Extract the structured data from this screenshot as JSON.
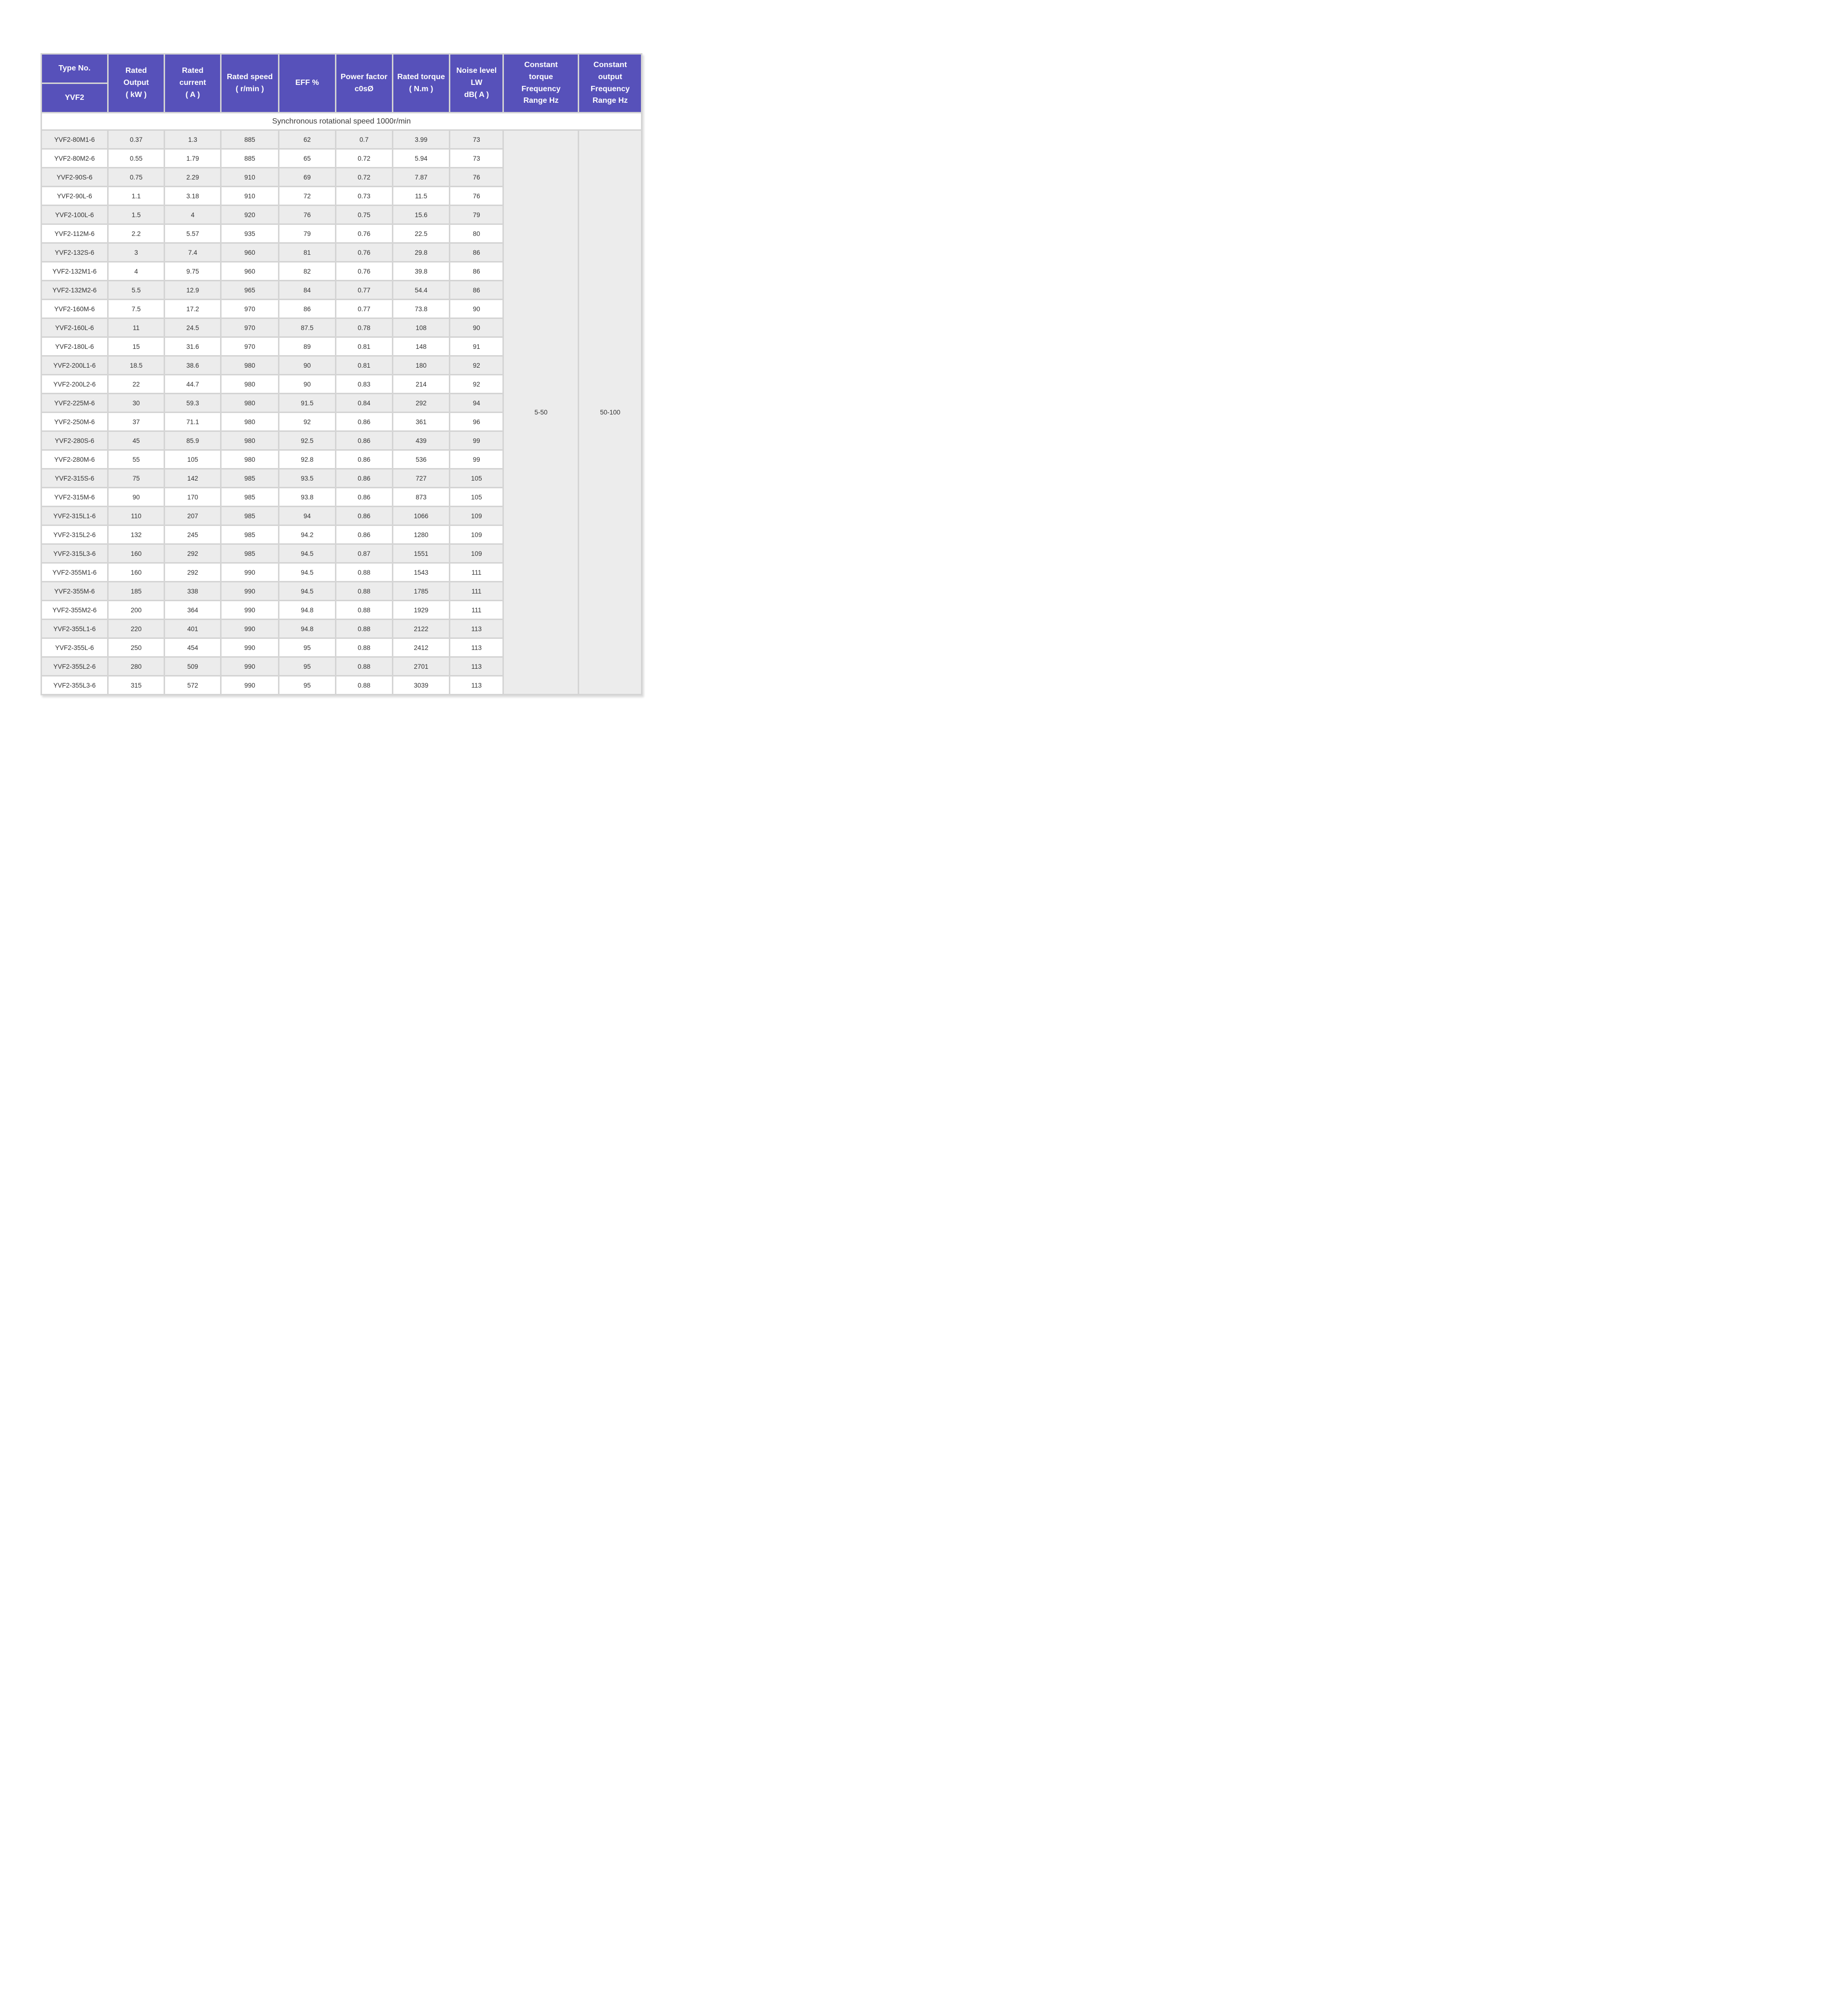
{
  "table": {
    "section_header": "Synchronous rotational speed 1000r/min",
    "columns": [
      {
        "key": "type_no",
        "label": [
          "Type No."
        ],
        "sub_label": "YVF2"
      },
      {
        "key": "rated_output_kw",
        "label": [
          "Rated",
          "Output",
          "( kW )"
        ]
      },
      {
        "key": "rated_current_a",
        "label": [
          "Rated",
          "current",
          "( A )"
        ]
      },
      {
        "key": "rated_speed_rpm",
        "label": [
          "Rated speed",
          "( r/min )"
        ]
      },
      {
        "key": "eff_percent",
        "label": [
          "EFF %"
        ]
      },
      {
        "key": "power_factor",
        "label": [
          "Power factor",
          "c0sØ"
        ]
      },
      {
        "key": "rated_torque_nm",
        "label": [
          "Rated torque",
          "( N.m )"
        ]
      },
      {
        "key": "noise_level_db",
        "label": [
          "Noise level",
          "LW",
          "dB( A )"
        ]
      },
      {
        "key": "constant_torque",
        "label": [
          "Constant",
          "torque",
          "Frequency",
          "Range Hz"
        ]
      },
      {
        "key": "constant_output",
        "label": [
          "Constant",
          "output",
          "Frequency",
          "Range Hz"
        ]
      }
    ],
    "row_cell_keys": [
      "type-no",
      "rated-output-kw",
      "rated-current-a",
      "rated-speed-rpm",
      "eff-percent",
      "power-factor",
      "rated-torque-nm",
      "noise-level-db"
    ],
    "constant_torque_range": "5-50",
    "constant_output_range": "50-100",
    "rows": [
      [
        "YVF2-80M1-6",
        "0.37",
        "1.3",
        "885",
        "62",
        "0.7",
        "3.99",
        "73"
      ],
      [
        "YVF2-80M2-6",
        "0.55",
        "1.79",
        "885",
        "65",
        "0.72",
        "5.94",
        "73"
      ],
      [
        "YVF2-90S-6",
        "0.75",
        "2.29",
        "910",
        "69",
        "0.72",
        "7.87",
        "76"
      ],
      [
        "YVF2-90L-6",
        "1.1",
        "3.18",
        "910",
        "72",
        "0.73",
        "11.5",
        "76"
      ],
      [
        "YVF2-100L-6",
        "1.5",
        "4",
        "920",
        "76",
        "0.75",
        "15.6",
        "79"
      ],
      [
        "YVF2-112M-6",
        "2.2",
        "5.57",
        "935",
        "79",
        "0.76",
        "22.5",
        "80"
      ],
      [
        "YVF2-132S-6",
        "3",
        "7.4",
        "960",
        "81",
        "0.76",
        "29.8",
        "86"
      ],
      [
        "YVF2-132M1-6",
        "4",
        "9.75",
        "960",
        "82",
        "0.76",
        "39.8",
        "86"
      ],
      [
        "YVF2-132M2-6",
        "5.5",
        "12.9",
        "965",
        "84",
        "0.77",
        "54.4",
        "86"
      ],
      [
        "YVF2-160M-6",
        "7.5",
        "17.2",
        "970",
        "86",
        "0.77",
        "73.8",
        "90"
      ],
      [
        "YVF2-160L-6",
        "11",
        "24.5",
        "970",
        "87.5",
        "0.78",
        "108",
        "90"
      ],
      [
        "YVF2-180L-6",
        "15",
        "31.6",
        "970",
        "89",
        "0.81",
        "148",
        "91"
      ],
      [
        "YVF2-200L1-6",
        "18.5",
        "38.6",
        "980",
        "90",
        "0.81",
        "180",
        "92"
      ],
      [
        "YVF2-200L2-6",
        "22",
        "44.7",
        "980",
        "90",
        "0.83",
        "214",
        "92"
      ],
      [
        "YVF2-225M-6",
        "30",
        "59.3",
        "980",
        "91.5",
        "0.84",
        "292",
        "94"
      ],
      [
        "YVF2-250M-6",
        "37",
        "71.1",
        "980",
        "92",
        "0.86",
        "361",
        "96"
      ],
      [
        "YVF2-280S-6",
        "45",
        "85.9",
        "980",
        "92.5",
        "0.86",
        "439",
        "99"
      ],
      [
        "YVF2-280M-6",
        "55",
        "105",
        "980",
        "92.8",
        "0.86",
        "536",
        "99"
      ],
      [
        "YVF2-315S-6",
        "75",
        "142",
        "985",
        "93.5",
        "0.86",
        "727",
        "105"
      ],
      [
        "YVF2-315M-6",
        "90",
        "170",
        "985",
        "93.8",
        "0.86",
        "873",
        "105"
      ],
      [
        "YVF2-315L1-6",
        "110",
        "207",
        "985",
        "94",
        "0.86",
        "1066",
        "109"
      ],
      [
        "YVF2-315L2-6",
        "132",
        "245",
        "985",
        "94.2",
        "0.86",
        "1280",
        "109"
      ],
      [
        "YVF2-315L3-6",
        "160",
        "292",
        "985",
        "94.5",
        "0.87",
        "1551",
        "109"
      ],
      [
        "YVF2-355M1-6",
        "160",
        "292",
        "990",
        "94.5",
        "0.88",
        "1543",
        "111"
      ],
      [
        "YVF2-355M-6",
        "185",
        "338",
        "990",
        "94.5",
        "0.88",
        "1785",
        "111"
      ],
      [
        "YVF2-355M2-6",
        "200",
        "364",
        "990",
        "94.8",
        "0.88",
        "1929",
        "111"
      ],
      [
        "YVF2-355L1-6",
        "220",
        "401",
        "990",
        "94.8",
        "0.88",
        "2122",
        "113"
      ],
      [
        "YVF2-355L-6",
        "250",
        "454",
        "990",
        "95",
        "0.88",
        "2412",
        "113"
      ],
      [
        "YVF2-355L2-6",
        "280",
        "509",
        "990",
        "95",
        "0.88",
        "2701",
        "113"
      ],
      [
        "YVF2-355L3-6",
        "315",
        "572",
        "990",
        "95",
        "0.88",
        "3039",
        "113"
      ]
    ]
  },
  "colors": {
    "header_bg": "#5751ba",
    "header_text": "#ffffff",
    "row_stripe": "#ececec",
    "row_white": "#ffffff",
    "gridline": "#d4d4d4",
    "range_cell_bg": "#eaeaea",
    "body_text": "#333333"
  }
}
